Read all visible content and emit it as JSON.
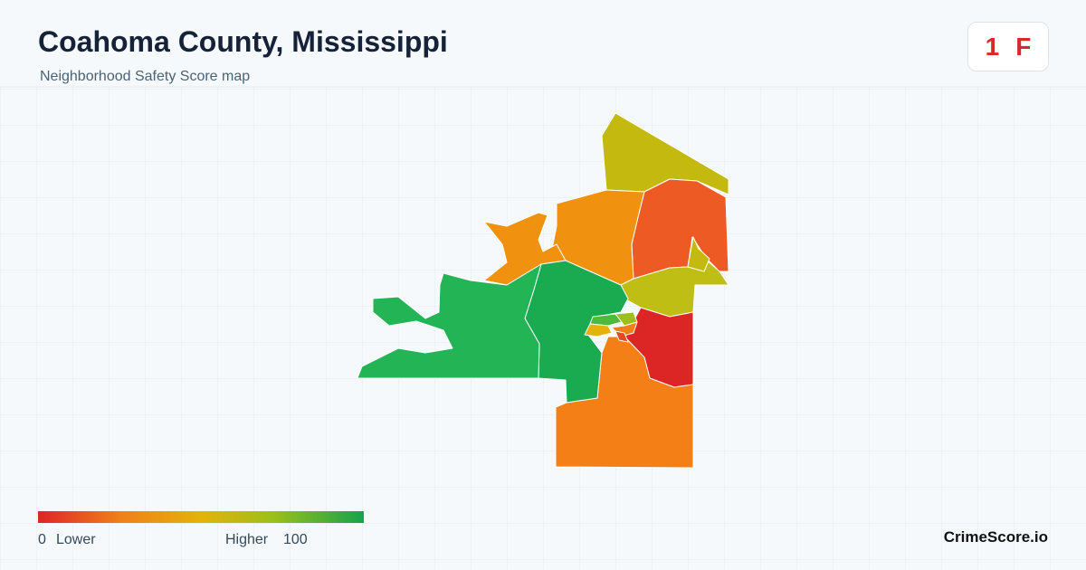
{
  "header": {
    "title": "Coahoma County, Mississippi",
    "subtitle": "Neighborhood Safety Score map"
  },
  "badge": {
    "score": "1",
    "grade": "F"
  },
  "legend": {
    "min": "0",
    "low_label": "Lower",
    "high_label": "Higher",
    "max": "100"
  },
  "footer": {
    "brand": "CrimeScore.io"
  }
}
